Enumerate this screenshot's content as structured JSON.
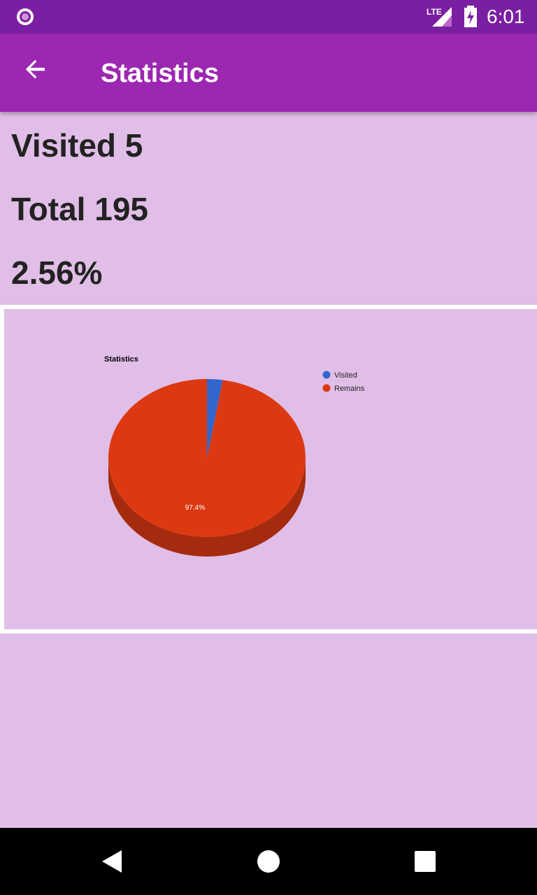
{
  "status_bar": {
    "time": "6:01",
    "network": "LTE",
    "icons": [
      "app-indicator-icon",
      "lte-signal-icon",
      "battery-charging-icon"
    ]
  },
  "app_bar": {
    "title": "Statistics",
    "back_icon": "arrow-back-icon"
  },
  "stats": {
    "visited": "Visited 5",
    "total": "Total 195",
    "percent": "2.56%"
  },
  "chart_data": {
    "type": "pie",
    "title": "Statistics",
    "labels": [
      "Visited",
      "Remains"
    ],
    "values": [
      5,
      190
    ],
    "data_labels": [
      "",
      "97.4%"
    ],
    "colors": [
      "#3366cc",
      "#dc3912"
    ],
    "legend_position": "right",
    "is_3d": true
  },
  "nav_bar": {
    "icons": [
      "back-triangle-icon",
      "home-circle-icon",
      "recents-square-icon"
    ]
  }
}
